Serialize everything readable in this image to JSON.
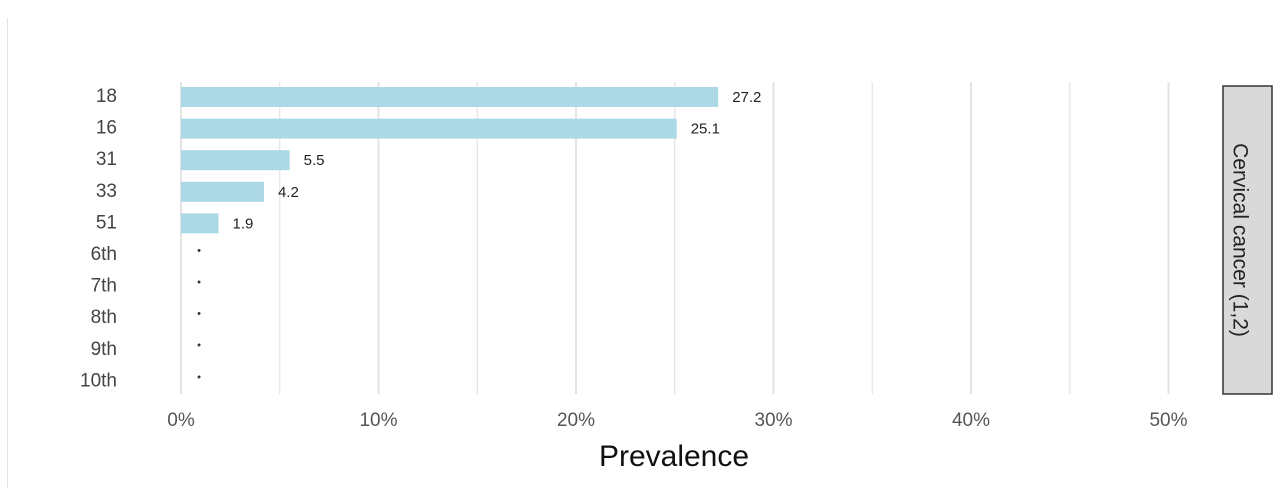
{
  "chart_data": {
    "type": "bar",
    "orientation": "horizontal",
    "categories": [
      "18",
      "16",
      "31",
      "33",
      "51",
      "6th",
      "7th",
      "8th",
      "9th",
      "10th"
    ],
    "values": [
      27.2,
      25.1,
      5.5,
      4.2,
      1.9,
      null,
      null,
      null,
      null,
      null
    ],
    "value_labels": [
      "27.2",
      "25.1",
      "5.5",
      "4.2",
      "1.9",
      "",
      "",
      "",
      "",
      ""
    ],
    "missing_marker": "•",
    "xlabel": "Prevalence",
    "ylabel": "",
    "xlim": [
      0,
      55
    ],
    "x_ticks": [
      0,
      10,
      20,
      30,
      40,
      50
    ],
    "x_tick_labels": [
      "0%",
      "10%",
      "20%",
      "30%",
      "40%",
      "50%"
    ],
    "facet_label": "Cervical cancer (1,2)",
    "grid": "vertical",
    "bar_color": "#add8e6",
    "grid_color": "#e3e3e3",
    "strip_color": "#d9d9d9"
  }
}
